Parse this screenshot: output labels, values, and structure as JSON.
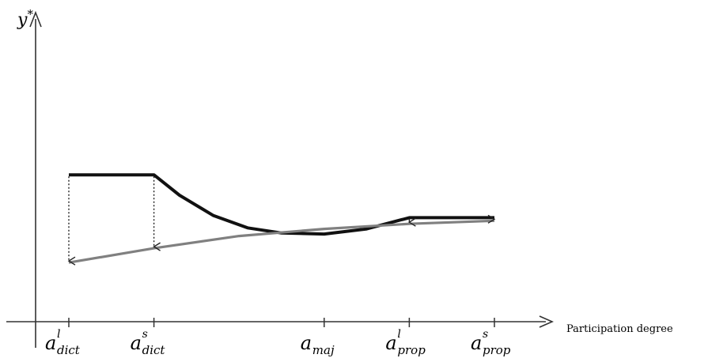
{
  "chart_data": {
    "type": "line",
    "title": "",
    "xlabel": "Participation degree",
    "ylabel": "y",
    "ylabel_superscript": "*",
    "ticks": [
      {
        "base": "a",
        "sup": "l",
        "sub": "dict"
      },
      {
        "base": "a",
        "sup": "s",
        "sub": "dict"
      },
      {
        "base": "a",
        "sup": "",
        "sub": "maj"
      },
      {
        "base": "a",
        "sup": "l",
        "sub": "prop"
      },
      {
        "base": "a",
        "sup": "s",
        "sub": "prop"
      }
    ],
    "x_ticks": [
      1,
      2,
      4,
      5,
      6
    ],
    "xlim": [
      0,
      6.5
    ],
    "ylim": [
      0,
      10
    ],
    "series": [
      {
        "style": "black-thick",
        "color": "#111111",
        "points": [
          [
            1,
            7.2
          ],
          [
            2,
            7.2
          ],
          [
            2.3,
            6.2
          ],
          [
            2.7,
            5.2
          ],
          [
            3.1,
            4.6
          ],
          [
            3.5,
            4.35
          ],
          [
            4,
            4.3
          ],
          [
            4.5,
            4.55
          ],
          [
            5,
            5.1
          ],
          [
            6,
            5.1
          ]
        ]
      },
      {
        "style": "gray",
        "color": "#808080",
        "points": [
          [
            1,
            2.9
          ],
          [
            2,
            3.6
          ],
          [
            3,
            4.2
          ],
          [
            4,
            4.55
          ],
          [
            5,
            4.8
          ],
          [
            6,
            4.95
          ]
        ]
      }
    ],
    "drop_arrows": [
      {
        "x": 1,
        "y_from": 7.2,
        "y_to": 2.9,
        "dash": "dotted"
      },
      {
        "x": 2,
        "y_from": 7.2,
        "y_to": 3.6,
        "dash": "dotted"
      },
      {
        "x": 5,
        "y_from": 5.1,
        "y_to": 4.8,
        "dash": "solid"
      },
      {
        "x": 6,
        "y_from": 5.1,
        "y_to": 4.95,
        "dash": "solid"
      }
    ]
  }
}
